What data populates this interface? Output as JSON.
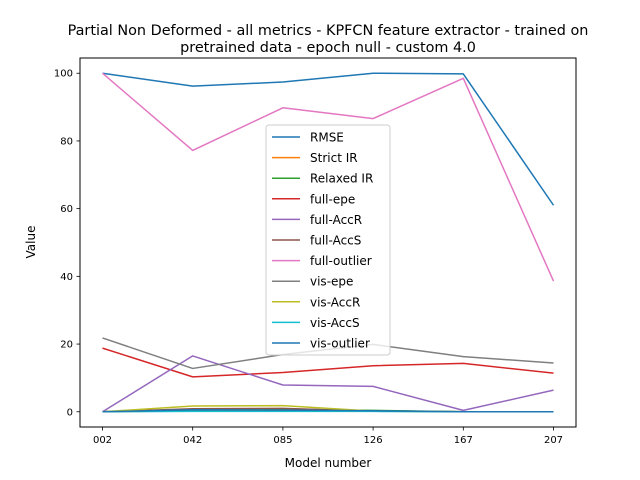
{
  "chart_data": {
    "type": "line",
    "title_line1": "Partial Non Deformed - all metrics - KPFCN feature extractor -  trained on",
    "title_line2": "pretrained data -  epoch null - custom 4.0",
    "xlabel": "Model number",
    "ylabel": "Value",
    "categories": [
      "002",
      "042",
      "085",
      "126",
      "167",
      "207"
    ],
    "ylim": [
      -4.5,
      104.5
    ],
    "yticks": [
      0,
      20,
      40,
      60,
      80,
      100
    ],
    "grid": false,
    "legend_position": "center",
    "series": [
      {
        "name": "RMSE",
        "color": "#1f77b4",
        "values": [
          100,
          96.2,
          97.4,
          100,
          99.8,
          61
        ]
      },
      {
        "name": "Strict IR",
        "color": "#ff7f0e",
        "values": [
          0,
          0.3,
          0.3,
          0.3,
          0,
          0
        ]
      },
      {
        "name": "Relaxed IR",
        "color": "#2ca02c",
        "values": [
          0,
          0.5,
          0.6,
          0.4,
          0,
          0
        ]
      },
      {
        "name": "full-epe",
        "color": "#d62728",
        "values": [
          18.8,
          10.3,
          11.6,
          13.6,
          14.3,
          11.4
        ]
      },
      {
        "name": "full-AccR",
        "color": "#9467bd",
        "values": [
          0,
          16.5,
          7.9,
          7.5,
          0.4,
          6.4
        ]
      },
      {
        "name": "full-AccS",
        "color": "#8c564b",
        "values": [
          0,
          0.9,
          1.0,
          0.2,
          0,
          0
        ]
      },
      {
        "name": "full-outlier",
        "color": "#e377c2",
        "values": [
          100,
          77.2,
          89.8,
          86.6,
          98.5,
          38.6
        ]
      },
      {
        "name": "vis-epe",
        "color": "#7f7f7f",
        "values": [
          21.8,
          12.8,
          16.9,
          19.9,
          16.3,
          14.4
        ]
      },
      {
        "name": "vis-AccR",
        "color": "#bcbd22",
        "values": [
          0,
          1.7,
          1.8,
          0.2,
          0,
          0
        ]
      },
      {
        "name": "vis-AccS",
        "color": "#17becf",
        "values": [
          0,
          0.1,
          0.1,
          0.1,
          0,
          0
        ]
      },
      {
        "name": "vis-outlier",
        "color": "#1f77b4",
        "values": [
          0,
          0.6,
          0.5,
          0.3,
          0,
          0
        ]
      }
    ]
  }
}
